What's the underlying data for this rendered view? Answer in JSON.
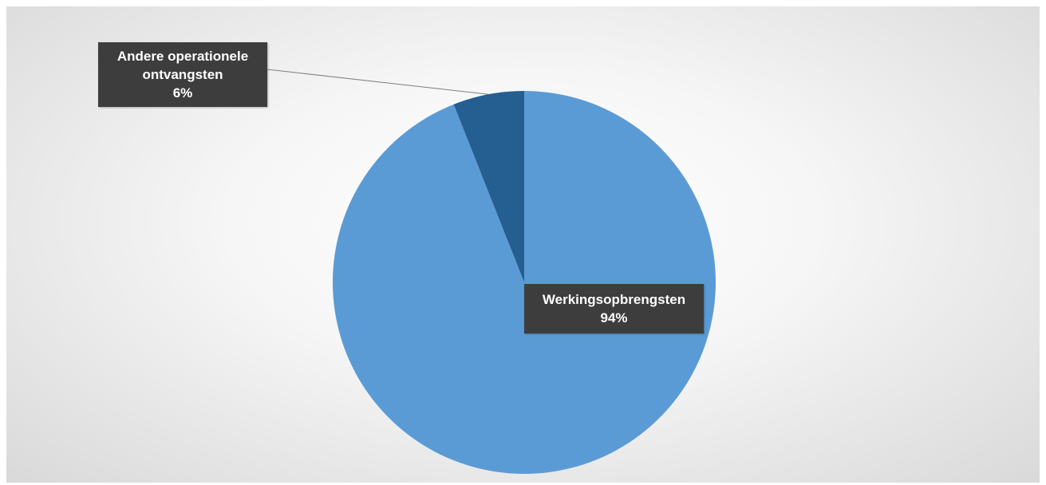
{
  "chart_data": {
    "type": "pie",
    "categories": [
      "Werkingsopbrengsten",
      "Andere operationele ontvangsten"
    ],
    "values": [
      94,
      6
    ],
    "value_labels": [
      "94%",
      "6%"
    ],
    "colors": [
      "#5b9bd5",
      "#255e91"
    ]
  }
}
